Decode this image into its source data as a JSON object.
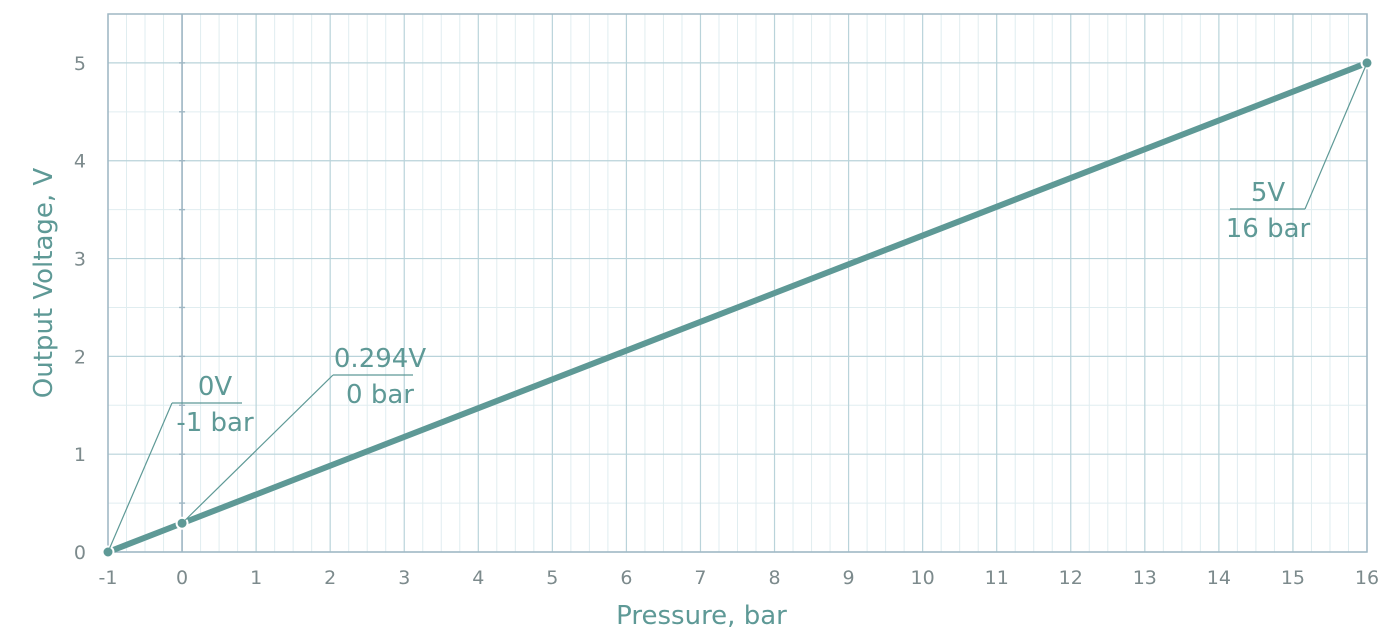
{
  "colors": {
    "line": "#5e9996",
    "major_grid": "#b9d3da",
    "minor_grid": "#e0edf0",
    "frame": "#9fb7c4",
    "text": "#5e9996",
    "tick_text": "#7c8a8c"
  },
  "chart_data": {
    "type": "line",
    "title": "",
    "xlabel": "Pressure, bar",
    "ylabel": "Output Voltage, V",
    "xlim": [
      -1,
      16
    ],
    "ylim": [
      0,
      5.5
    ],
    "xticks": [
      "-1",
      "0",
      "1",
      "2",
      "3",
      "4",
      "5",
      "6",
      "7",
      "8",
      "9",
      "10",
      "11",
      "12",
      "13",
      "14",
      "15",
      "16"
    ],
    "yticks": [
      "0",
      "1",
      "2",
      "3",
      "4",
      "5"
    ],
    "grid": true,
    "minor_grid": true,
    "series": [
      {
        "x": [
          -1,
          0,
          16
        ],
        "y": [
          0,
          0.294,
          5
        ]
      }
    ],
    "annotations": [
      {
        "x": -1,
        "y": 0,
        "line1": "0V",
        "line2": "-1 bar"
      },
      {
        "x": 0,
        "y": 0.294,
        "line1": "0.294V",
        "line2": "0 bar"
      },
      {
        "x": 16,
        "y": 5,
        "line1": "5V",
        "line2": "16 bar"
      }
    ]
  }
}
